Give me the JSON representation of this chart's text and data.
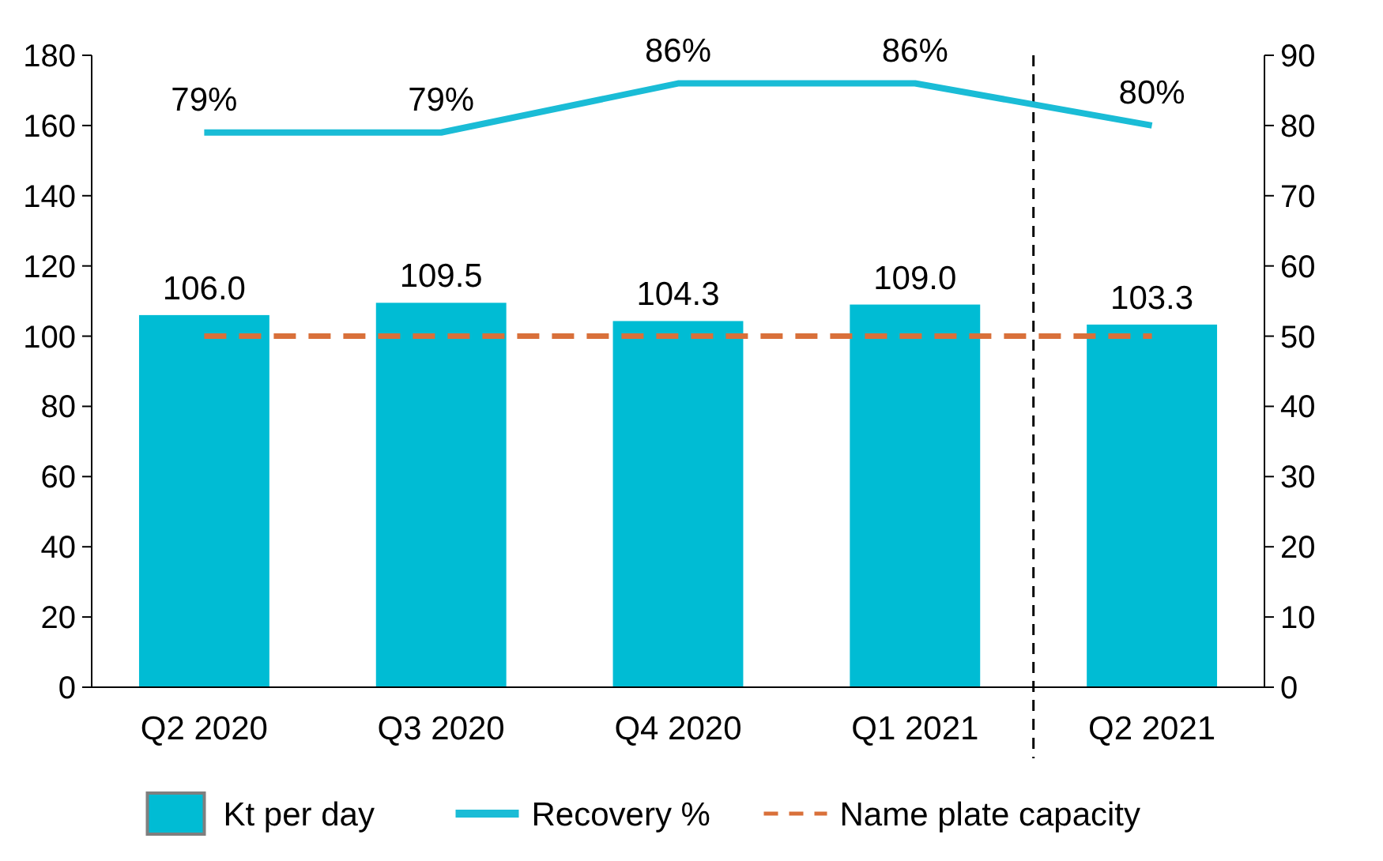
{
  "chart_data": {
    "type": "bar",
    "categories": [
      "Q2 2020",
      "Q3 2020",
      "Q4 2020",
      "Q1 2021",
      "Q2 2021"
    ],
    "series": [
      {
        "name": "Kt per day",
        "color": "#00bcd4",
        "values": [
          106.0,
          109.5,
          104.3,
          109.0,
          103.3
        ],
        "value_labels": [
          "106.0",
          "109.5",
          "104.3",
          "109.0",
          "103.3"
        ]
      },
      {
        "name": "Recovery %",
        "type": "line",
        "axis": "y2",
        "color": "#1abcd6",
        "values": [
          79,
          79,
          86,
          86,
          80
        ],
        "value_labels": [
          "79%",
          "79%",
          "86%",
          "86%",
          "80%"
        ]
      },
      {
        "name": "Name plate capacity",
        "type": "line",
        "color": "#d9703a",
        "line_style": "dashed",
        "values": [
          100,
          100,
          100,
          100,
          100
        ]
      }
    ],
    "ylim": [
      0,
      180
    ],
    "yticks": [
      0,
      20,
      40,
      60,
      80,
      100,
      120,
      140,
      160,
      180
    ],
    "y2lim": [
      0,
      90
    ],
    "y2ticks": [
      0,
      10,
      20,
      30,
      40,
      50,
      60,
      70,
      80,
      90
    ],
    "grid": false,
    "legend": "bottom"
  }
}
